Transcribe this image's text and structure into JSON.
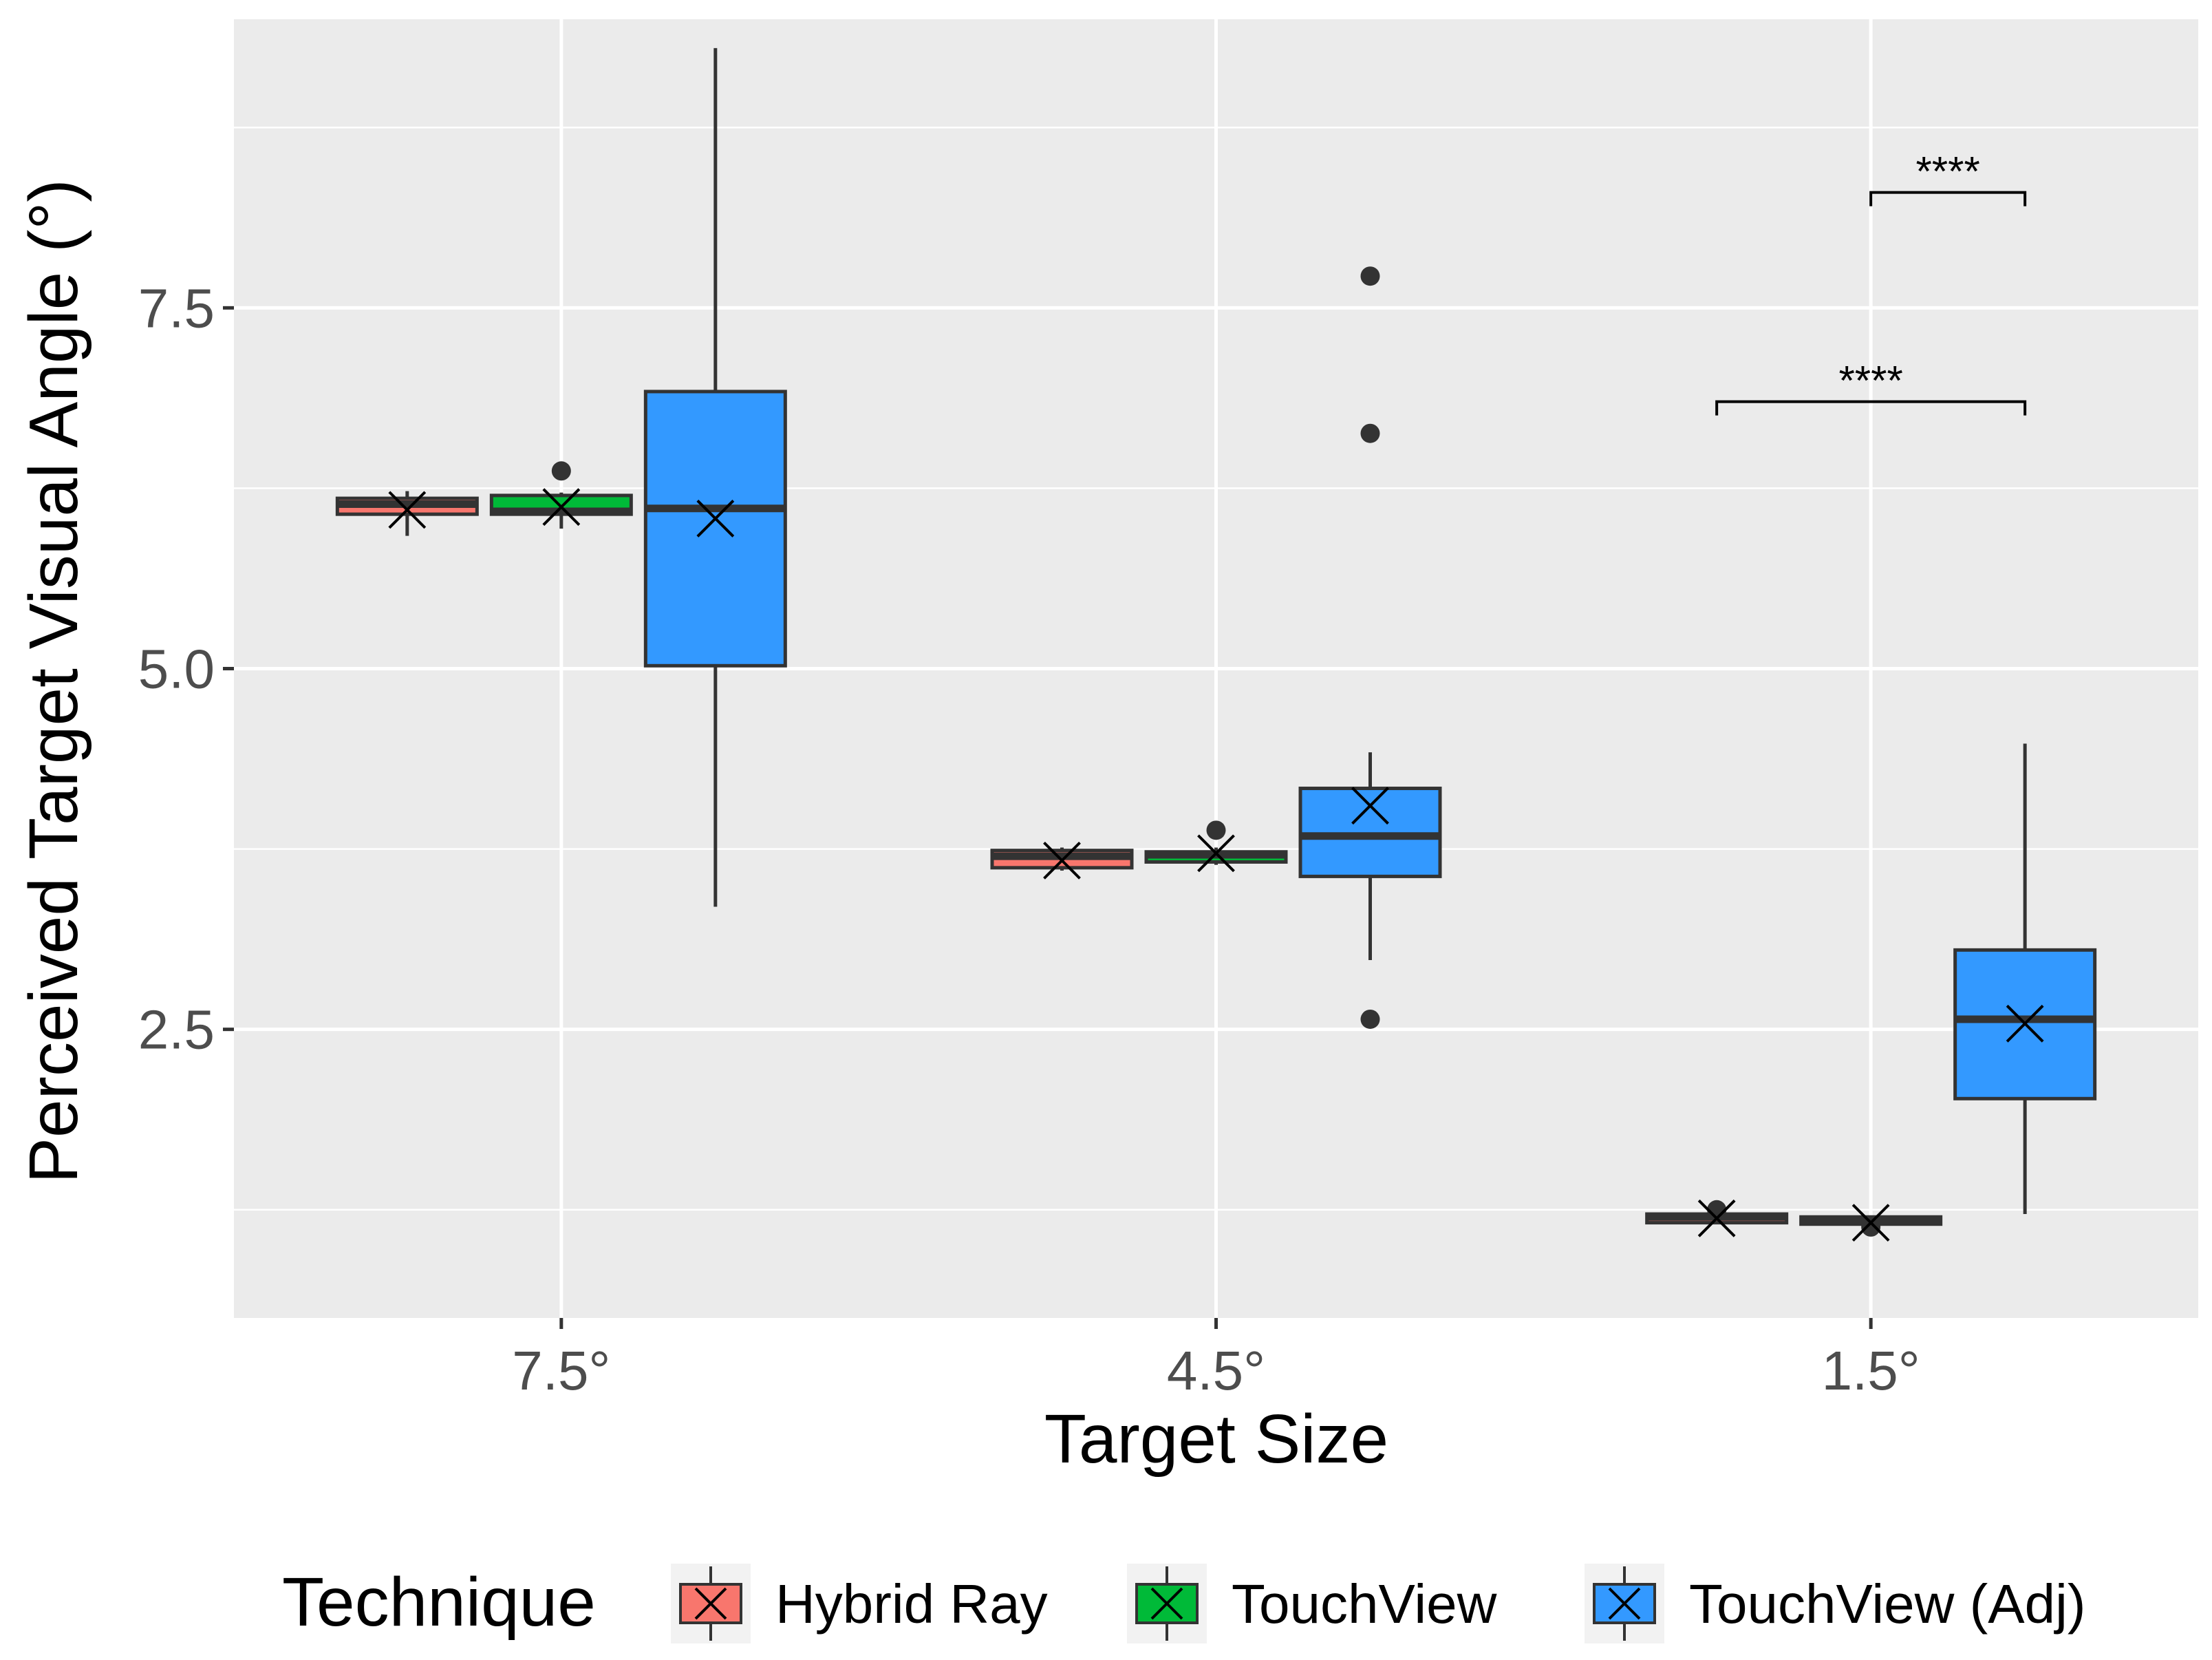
{
  "chart_data": {
    "type": "box",
    "title": "",
    "xlabel": "Target Size",
    "ylabel": "Perceived Target Visual Angle (°)",
    "ylim": [
      0.5,
      9.5
    ],
    "yticks": [
      {
        "value": 2.5,
        "label": "2.5"
      },
      {
        "value": 5.0,
        "label": "5.0"
      },
      {
        "value": 7.5,
        "label": "7.5"
      }
    ],
    "categories": [
      "7.5°",
      "4.5°",
      "1.5°"
    ],
    "legend": {
      "title": "Technique",
      "position": "bottom",
      "entries": [
        "Hybrid Ray",
        "TouchView",
        "TouchView (Adj)"
      ]
    },
    "colors": {
      "panel": "#EBEBEB",
      "grid": "#FFFFFF",
      "box_border": "#333333",
      "Hybrid Ray": "#F8766D",
      "TouchView": "#00BA38",
      "TouchView (Adj)": "#3399FF"
    },
    "series": [
      {
        "name": "Hybrid Ray",
        "boxes": [
          {
            "category": "7.5°",
            "whisker_low": 5.92,
            "q1": 6.07,
            "median": 6.14,
            "q3": 6.18,
            "whisker_high": 6.23,
            "mean": 6.1,
            "outliers": []
          },
          {
            "category": "4.5°",
            "whisker_low": 3.6,
            "q1": 3.62,
            "median": 3.7,
            "q3": 3.74,
            "whisker_high": 3.76,
            "mean": 3.67,
            "outliers": []
          },
          {
            "category": "1.5°",
            "whisker_low": 1.15,
            "q1": 1.16,
            "median": 1.2,
            "q3": 1.22,
            "whisker_high": 1.22,
            "mean": 1.19,
            "outliers": [
              1.25
            ]
          }
        ]
      },
      {
        "name": "TouchView",
        "boxes": [
          {
            "category": "7.5°",
            "whisker_low": 5.97,
            "q1": 6.07,
            "median": 6.09,
            "q3": 6.2,
            "whisker_high": 6.22,
            "mean": 6.12,
            "outliers": [
              6.37
            ]
          },
          {
            "category": "4.5°",
            "whisker_low": 3.64,
            "q1": 3.66,
            "median": 3.71,
            "q3": 3.73,
            "whisker_high": 3.76,
            "mean": 3.72,
            "outliers": [
              3.88
            ]
          },
          {
            "category": "1.5°",
            "whisker_low": 1.14,
            "q1": 1.15,
            "median": 1.17,
            "q3": 1.2,
            "whisker_high": 1.2,
            "mean": 1.16,
            "outliers": [
              1.13
            ]
          }
        ]
      },
      {
        "name": "TouchView (Adj)",
        "boxes": [
          {
            "category": "7.5°",
            "whisker_low": 3.35,
            "q1": 5.02,
            "median": 6.11,
            "q3": 6.92,
            "whisker_high": 9.3,
            "mean": 6.04,
            "outliers": []
          },
          {
            "category": "4.5°",
            "whisker_low": 2.98,
            "q1": 3.56,
            "median": 3.84,
            "q3": 4.17,
            "whisker_high": 4.42,
            "mean": 4.05,
            "outliers": [
              7.72,
              6.63,
              2.57
            ]
          },
          {
            "category": "1.5°",
            "whisker_low": 1.22,
            "q1": 2.02,
            "median": 2.57,
            "q3": 3.05,
            "whisker_high": 4.48,
            "mean": 2.54,
            "outliers": []
          }
        ]
      }
    ],
    "annotations": [
      {
        "category": "1.5°",
        "from": "TouchView",
        "to": "TouchView (Adj)",
        "y": 8.3,
        "label": "****"
      },
      {
        "category": "1.5°",
        "from": "Hybrid Ray",
        "to": "TouchView (Adj)",
        "y": 6.85,
        "label": "****"
      }
    ]
  }
}
